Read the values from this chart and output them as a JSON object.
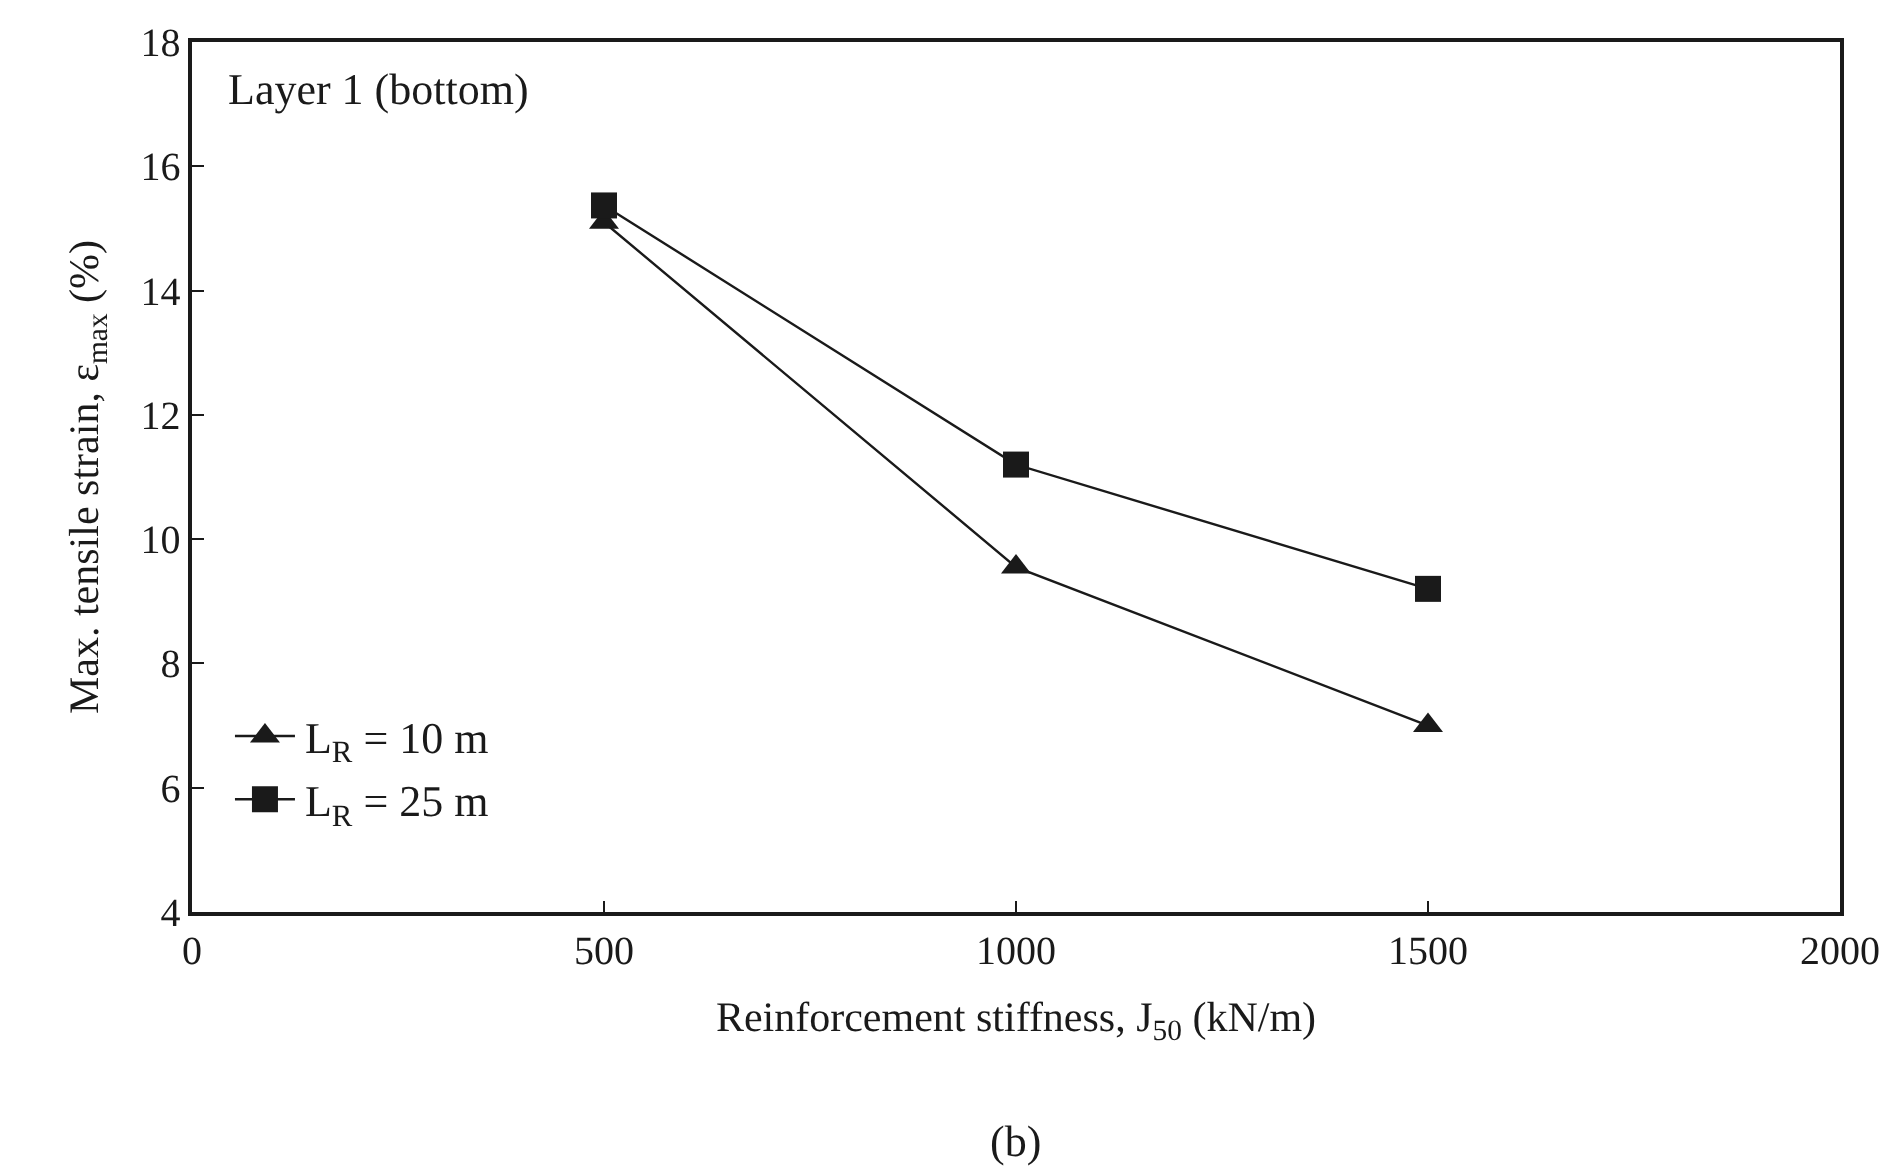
{
  "chart_data": {
    "type": "line",
    "xlabel": "Reinforcement stiffness, J$_{50}$ (kN/m)",
    "ylabel": "Max. tensile strain, ε$_{max}$ (%)",
    "annotations": [
      "Layer 1 (bottom)",
      "(b)"
    ],
    "x": [
      500,
      1000,
      1500
    ],
    "series": [
      {
        "name": "L$_{R}$ = 10 m",
        "color": "#1a1a1a",
        "marker": "triangle",
        "values": [
          15.1,
          9.55,
          7.0
        ]
      },
      {
        "name": "L$_{R}$ = 25 m",
        "color": "#1a1a1a",
        "marker": "square",
        "values": [
          15.37,
          11.2,
          9.2
        ]
      }
    ],
    "xlim": [
      0,
      2000
    ],
    "xticks": [
      0,
      500,
      1000,
      1500,
      2000
    ],
    "ylim": [
      4,
      18
    ],
    "yticks": [
      4,
      6,
      8,
      10,
      12,
      14,
      16,
      18
    ],
    "legend": "bottom left",
    "line_style": "solid"
  }
}
